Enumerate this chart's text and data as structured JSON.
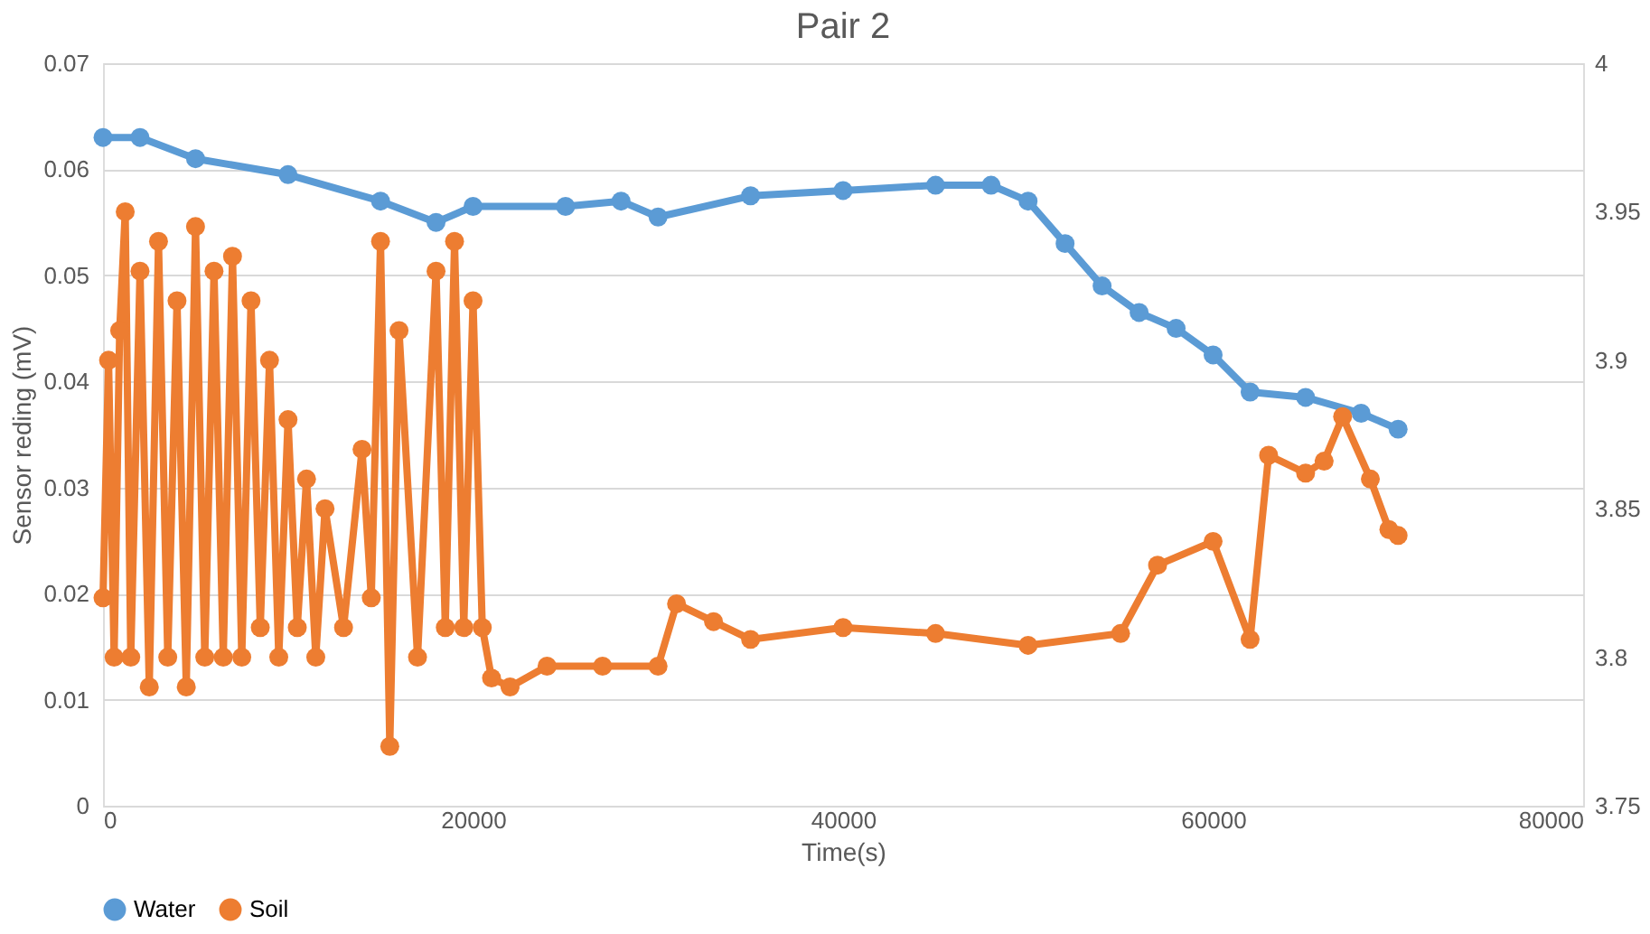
{
  "chart_data": {
    "type": "line",
    "title": "Pair 2",
    "xlabel": "Time(s)",
    "ylabel": "Sensor reding (mV)",
    "xlim": [
      0,
      80000
    ],
    "xticks": [
      0,
      20000,
      40000,
      60000,
      80000
    ],
    "ylim": [
      0,
      0.07
    ],
    "yticks": [
      0,
      0.01,
      0.02,
      0.03,
      0.04,
      0.05,
      0.06,
      0.07
    ],
    "y2lim": [
      3.75,
      4
    ],
    "y2ticks": [
      3.75,
      3.8,
      3.85,
      3.9,
      3.95,
      4
    ],
    "grid": "y",
    "legend": "bottom",
    "marker": "circle",
    "line_style": "solid",
    "series": [
      {
        "name": "Water",
        "color": "#5b9bd5",
        "x": [
          0,
          2000,
          5000,
          10000,
          15000,
          18000,
          20000,
          25000,
          28000,
          30000,
          35000,
          40000,
          45000,
          48000,
          50000,
          52000,
          54000,
          56000,
          58000,
          60000,
          62000,
          65000,
          68000,
          70000
        ],
        "values": [
          0.063,
          0.063,
          0.061,
          0.0595,
          0.057,
          0.055,
          0.0565,
          0.0565,
          0.057,
          0.0555,
          0.0575,
          0.058,
          0.0585,
          0.0585,
          0.057,
          0.053,
          0.049,
          0.0465,
          0.045,
          0.0425,
          0.039,
          0.0385,
          0.037,
          0.0355
        ]
      },
      {
        "name": "Soil",
        "color": "#ed7d31",
        "axis": "y2",
        "x": [
          0,
          300,
          600,
          900,
          1200,
          1500,
          2000,
          2500,
          3000,
          3500,
          4000,
          4500,
          5000,
          5500,
          6000,
          6500,
          7000,
          7500,
          8000,
          8500,
          9000,
          9500,
          10000,
          10500,
          11000,
          11500,
          12000,
          13000,
          14000,
          14500,
          15000,
          15500,
          16000,
          17000,
          18000,
          18500,
          19000,
          19500,
          20000,
          20500,
          21000,
          22000,
          24000,
          27000,
          30000,
          31000,
          33000,
          35000,
          40000,
          45000,
          50000,
          55000,
          57000,
          60000,
          62000,
          63000,
          65000,
          66000,
          67000,
          68500,
          69500,
          70000
        ],
        "values": [
          3.82,
          3.9,
          3.8,
          3.91,
          3.95,
          3.8,
          3.93,
          3.79,
          3.94,
          3.8,
          3.92,
          3.79,
          3.945,
          3.8,
          3.93,
          3.8,
          3.935,
          3.8,
          3.92,
          3.81,
          3.9,
          3.8,
          3.88,
          3.81,
          3.86,
          3.8,
          3.85,
          3.81,
          3.87,
          3.82,
          3.94,
          3.77,
          3.91,
          3.8,
          3.93,
          3.81,
          3.94,
          3.81,
          3.92,
          3.81,
          3.793,
          3.79,
          3.797,
          3.797,
          3.797,
          3.818,
          3.812,
          3.806,
          3.81,
          3.808,
          3.804,
          3.808,
          3.831,
          3.839,
          3.806,
          3.868,
          3.862,
          3.866,
          3.881,
          3.86,
          3.843,
          3.841
        ]
      }
    ]
  }
}
